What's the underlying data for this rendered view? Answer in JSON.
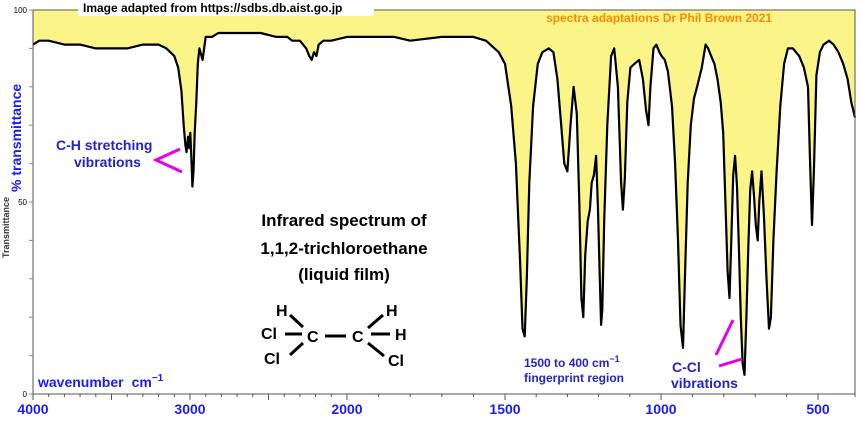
{
  "header": {
    "source_credit": "Image adapted from https://sdbs.db.aist.go.jp",
    "author_credit": "spectra adaptations Dr Phil Brown 2021"
  },
  "colors": {
    "spectrum_fill": "#fbf589",
    "axis_text_blue": "#1a1aff",
    "annotation_blue": "#2323c8",
    "pointer_magenta": "#e600e6",
    "author_orange": "#ff8a00",
    "line": "#000000"
  },
  "chart_data": {
    "type": "line",
    "title_lines": [
      "Infrared spectrum of",
      "1,1,2-trichloroethane",
      "(liquid film)"
    ],
    "xlabel": "wavenumber",
    "xlabel_unit": "cm",
    "xlabel_exponent": "−1",
    "ylabel": "% transmittance",
    "y_axis_clipped_label": "Transmittance",
    "xlim": [
      4000,
      400
    ],
    "ylim": [
      0,
      100
    ],
    "x_tick_labels": [
      {
        "value": 4000,
        "label": "4000"
      },
      {
        "value": 3000,
        "label": "3000"
      },
      {
        "value": 2000,
        "label": "2000"
      },
      {
        "value": 1500,
        "label": "1500"
      },
      {
        "value": 1000,
        "label": "1000"
      },
      {
        "value": 500,
        "label": "500"
      }
    ],
    "y_tick_labels": [
      {
        "value": 100,
        "label": "100"
      },
      {
        "value": 50,
        "label": "50"
      },
      {
        "value": 0,
        "label": "0"
      }
    ],
    "grid": false,
    "series": [
      {
        "points": [
          [
            4000,
            91
          ],
          [
            3960,
            92
          ],
          [
            3900,
            92
          ],
          [
            3800,
            91
          ],
          [
            3700,
            91
          ],
          [
            3600,
            90
          ],
          [
            3500,
            90
          ],
          [
            3400,
            90
          ],
          [
            3300,
            91
          ],
          [
            3200,
            91
          ],
          [
            3150,
            90
          ],
          [
            3100,
            88
          ],
          [
            3075,
            85
          ],
          [
            3055,
            79
          ],
          [
            3040,
            70
          ],
          [
            3030,
            65
          ],
          [
            3022,
            63
          ],
          [
            3012,
            67
          ],
          [
            3005,
            64
          ],
          [
            2998,
            68
          ],
          [
            2990,
            60
          ],
          [
            2985,
            54
          ],
          [
            2978,
            58
          ],
          [
            2970,
            68
          ],
          [
            2960,
            76
          ],
          [
            2950,
            86
          ],
          [
            2940,
            90
          ],
          [
            2920,
            87
          ],
          [
            2900,
            93
          ],
          [
            2860,
            93
          ],
          [
            2820,
            94
          ],
          [
            2700,
            94
          ],
          [
            2550,
            94
          ],
          [
            2450,
            93
          ],
          [
            2380,
            93
          ],
          [
            2350,
            92
          ],
          [
            2300,
            92
          ],
          [
            2260,
            90
          ],
          [
            2240,
            88
          ],
          [
            2225,
            87
          ],
          [
            2210,
            89
          ],
          [
            2195,
            88
          ],
          [
            2180,
            91
          ],
          [
            2150,
            92
          ],
          [
            2100,
            92
          ],
          [
            2000,
            93
          ],
          [
            1900,
            93
          ],
          [
            1850,
            93
          ],
          [
            1800,
            92
          ],
          [
            1700,
            93
          ],
          [
            1650,
            93
          ],
          [
            1600,
            93
          ],
          [
            1560,
            92
          ],
          [
            1520,
            89
          ],
          [
            1500,
            86
          ],
          [
            1480,
            75
          ],
          [
            1465,
            60
          ],
          [
            1452,
            35
          ],
          [
            1444,
            17
          ],
          [
            1437,
            15
          ],
          [
            1430,
            30
          ],
          [
            1422,
            55
          ],
          [
            1410,
            75
          ],
          [
            1395,
            86
          ],
          [
            1380,
            89
          ],
          [
            1360,
            90
          ],
          [
            1345,
            89
          ],
          [
            1332,
            82
          ],
          [
            1320,
            70
          ],
          [
            1310,
            60
          ],
          [
            1300,
            58
          ],
          [
            1290,
            70
          ],
          [
            1280,
            80
          ],
          [
            1270,
            73
          ],
          [
            1262,
            50
          ],
          [
            1255,
            25
          ],
          [
            1249,
            20
          ],
          [
            1243,
            36
          ],
          [
            1235,
            45
          ],
          [
            1228,
            48
          ],
          [
            1222,
            55
          ],
          [
            1215,
            57
          ],
          [
            1208,
            62
          ],
          [
            1202,
            48
          ],
          [
            1196,
            30
          ],
          [
            1192,
            18
          ],
          [
            1188,
            22
          ],
          [
            1182,
            45
          ],
          [
            1172,
            70
          ],
          [
            1160,
            88
          ],
          [
            1150,
            90
          ],
          [
            1138,
            80
          ],
          [
            1128,
            55
          ],
          [
            1122,
            48
          ],
          [
            1116,
            56
          ],
          [
            1108,
            76
          ],
          [
            1098,
            85
          ],
          [
            1085,
            86
          ],
          [
            1070,
            87
          ],
          [
            1058,
            82
          ],
          [
            1048,
            74
          ],
          [
            1040,
            70
          ],
          [
            1034,
            80
          ],
          [
            1024,
            90
          ],
          [
            1015,
            91
          ],
          [
            1005,
            89
          ],
          [
            998,
            88
          ],
          [
            988,
            87
          ],
          [
            978,
            84
          ],
          [
            965,
            75
          ],
          [
            955,
            60
          ],
          [
            946,
            40
          ],
          [
            938,
            18
          ],
          [
            930,
            12
          ],
          [
            924,
            30
          ],
          [
            915,
            55
          ],
          [
            905,
            70
          ],
          [
            895,
            77
          ],
          [
            885,
            80
          ],
          [
            870,
            85
          ],
          [
            858,
            91
          ],
          [
            850,
            90
          ],
          [
            840,
            88
          ],
          [
            830,
            86
          ],
          [
            820,
            82
          ],
          [
            810,
            76
          ],
          [
            802,
            68
          ],
          [
            795,
            50
          ],
          [
            788,
            32
          ],
          [
            782,
            25
          ],
          [
            776,
            40
          ],
          [
            770,
            57
          ],
          [
            764,
            62
          ],
          [
            758,
            54
          ],
          [
            752,
            38
          ],
          [
            746,
            20
          ],
          [
            740,
            8
          ],
          [
            734,
            5
          ],
          [
            728,
            20
          ],
          [
            722,
            38
          ],
          [
            716,
            53
          ],
          [
            710,
            58
          ],
          [
            704,
            52
          ],
          [
            698,
            44
          ],
          [
            692,
            40
          ],
          [
            687,
            50
          ],
          [
            680,
            58
          ],
          [
            672,
            46
          ],
          [
            664,
            30
          ],
          [
            656,
            17
          ],
          [
            650,
            20
          ],
          [
            642,
            40
          ],
          [
            632,
            58
          ],
          [
            620,
            75
          ],
          [
            608,
            86
          ],
          [
            596,
            90
          ],
          [
            580,
            90
          ],
          [
            560,
            88
          ],
          [
            545,
            85
          ],
          [
            532,
            80
          ],
          [
            525,
            60
          ],
          [
            519,
            44
          ],
          [
            513,
            58
          ],
          [
            505,
            83
          ],
          [
            495,
            89
          ],
          [
            485,
            91
          ],
          [
            470,
            92
          ],
          [
            458,
            91
          ],
          [
            445,
            89
          ],
          [
            432,
            86
          ],
          [
            420,
            82
          ],
          [
            410,
            76
          ],
          [
            400,
            72
          ]
        ]
      }
    ],
    "annotations": {
      "ch_stretch": [
        "C-H stretching",
        "vibrations"
      ],
      "fingerprint": [
        "1500 to 400 cm",
        "−1",
        "fingerprint region"
      ],
      "ccl": [
        "C-Cl",
        "vibrations"
      ]
    }
  },
  "molecule": {
    "atoms": {
      "h_left": "H",
      "cl_left_top": "Cl",
      "c_left": "C",
      "cl_left_bottom": "Cl",
      "c_right": "C",
      "h_right_top": "H",
      "h_right_mid": "H",
      "cl_right": "Cl"
    }
  }
}
